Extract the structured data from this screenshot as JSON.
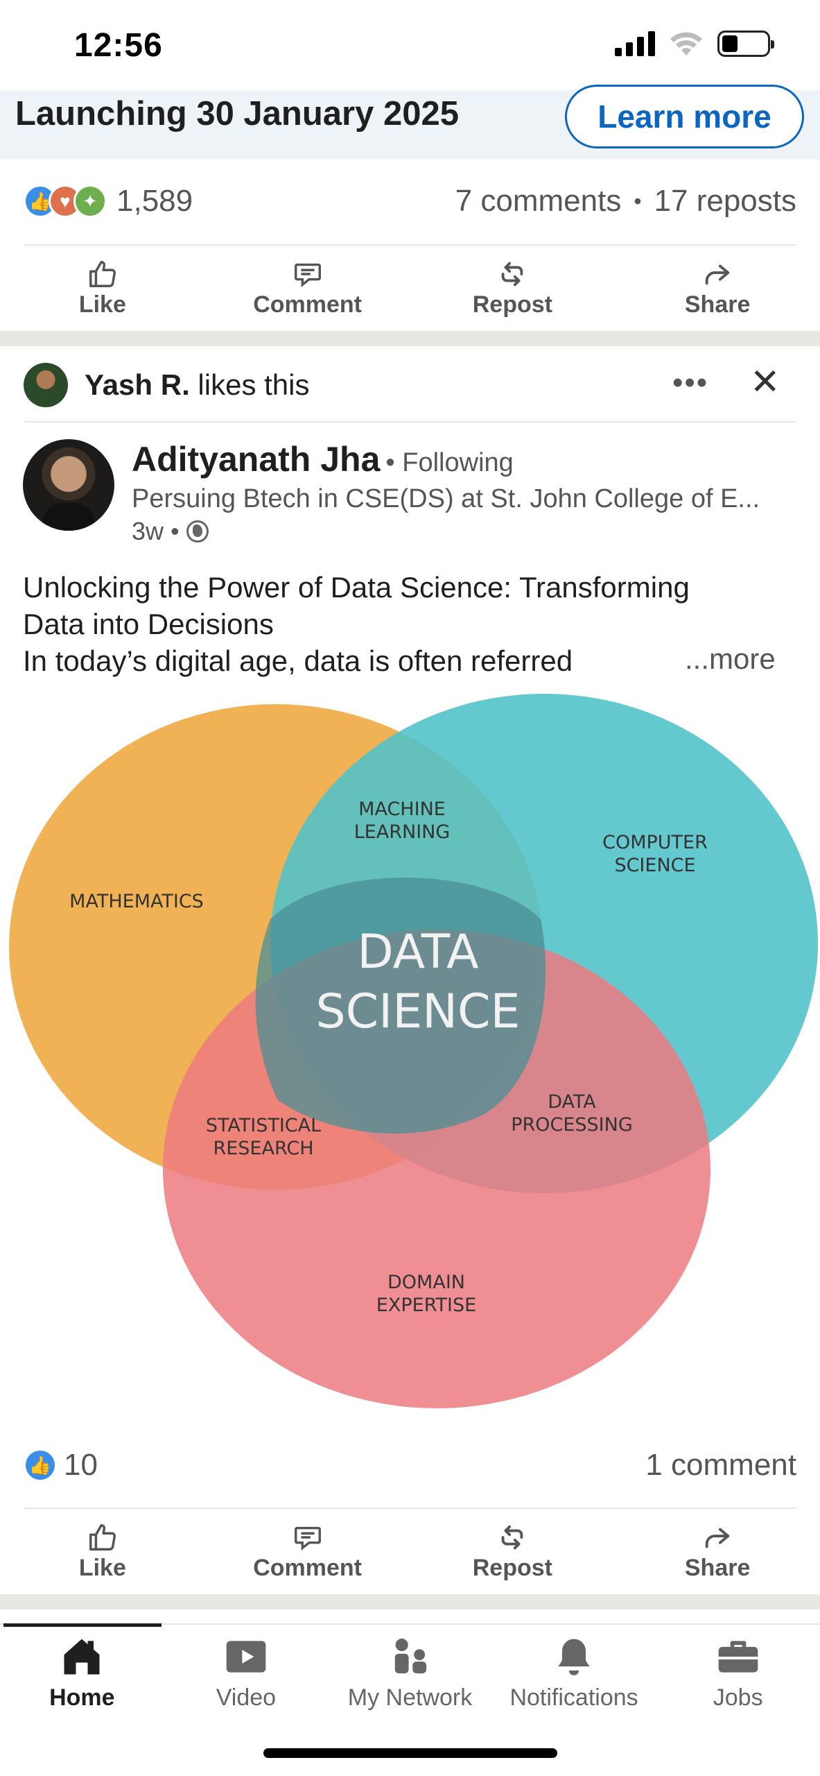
{
  "status_bar": {
    "time": "12:56"
  },
  "promo": {
    "text": "Launching 30 January 2025",
    "cta_label": "Learn more"
  },
  "post1": {
    "reaction_icons": [
      "like-reaction-icon",
      "love-reaction-icon",
      "insightful-reaction-icon"
    ],
    "reaction_count": "1,589",
    "comments": "7 comments",
    "separator": "•",
    "reposts": "17 reposts"
  },
  "actions": {
    "like": "Like",
    "comment": "Comment",
    "repost": "Repost",
    "share": "Share"
  },
  "social_context": {
    "name": "Yash R.",
    "suffix": "likes this"
  },
  "post2": {
    "author_name": "Adityanath Jha",
    "following_label": "• Following",
    "headline": "Persuing Btech in CSE(DS) at St. John College of E...",
    "time": "3w •",
    "text_lines": [
      "Unlocking the Power of Data Science: Transforming",
      "Data into Decisions",
      "In today’s digital age, data is often referred"
    ],
    "see_more": "...more",
    "image": {
      "center": [
        "DATA",
        "SCIENCE"
      ],
      "mathematics": "MATHEMATICS",
      "machine_learning": [
        "MACHINE",
        "LEARNING"
      ],
      "computer_science": [
        "COMPUTER",
        "SCIENCE"
      ],
      "statistical_research": [
        "STATISTICAL",
        "RESEARCH"
      ],
      "data_processing": [
        "DATA",
        "PROCESSING"
      ],
      "domain_expertise": [
        "DOMAIN",
        "EXPERTISE"
      ],
      "colors": {
        "math": "#efae4c",
        "cs": "#4fc2c8",
        "domain": "#ec7a80"
      }
    },
    "reaction_count": "10",
    "comments": "1 comment"
  },
  "bottom_nav": {
    "items": [
      {
        "label": "Home",
        "icon": "home-icon",
        "active": true
      },
      {
        "label": "Video",
        "icon": "video-icon",
        "active": false
      },
      {
        "label": "My Network",
        "icon": "my-network-icon",
        "active": false
      },
      {
        "label": "Notifications",
        "icon": "bell-icon",
        "active": false
      },
      {
        "label": "Jobs",
        "icon": "briefcase-icon",
        "active": false
      }
    ]
  }
}
